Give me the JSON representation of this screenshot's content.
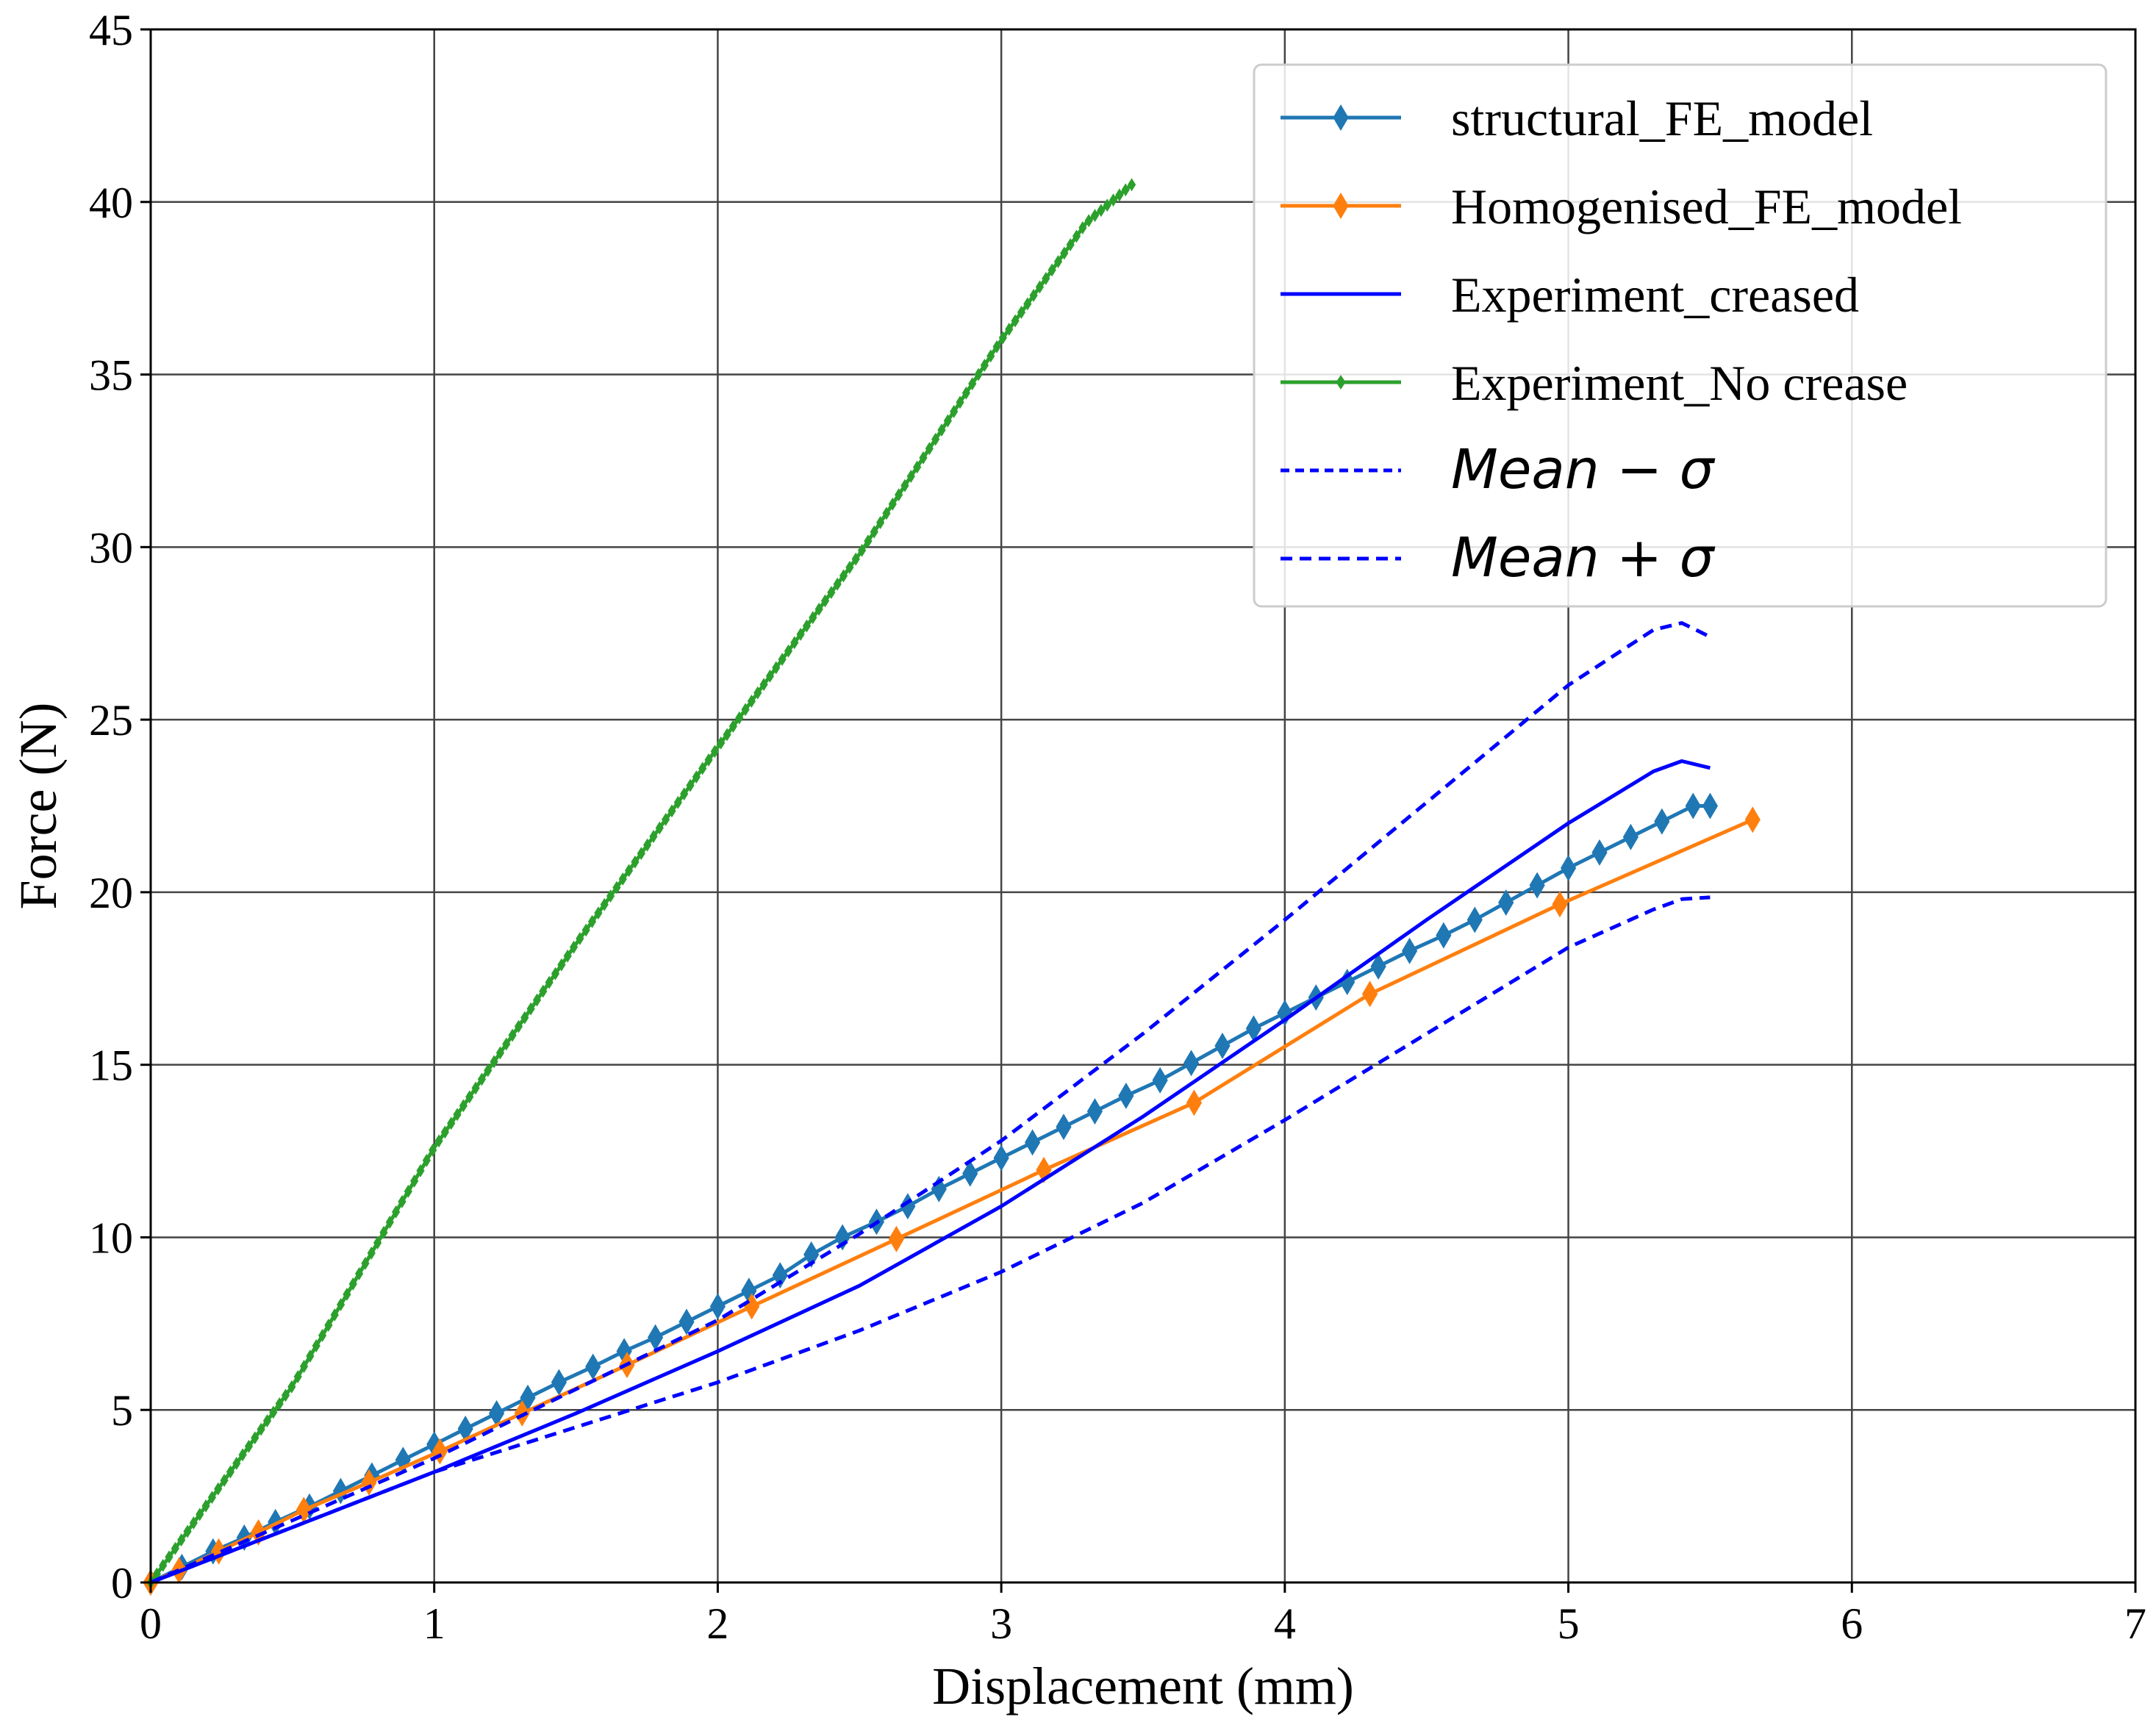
{
  "chart_data": {
    "type": "line",
    "title": "",
    "xlabel": "Displacement (mm)",
    "ylabel": "Force (N)",
    "xlim": [
      0,
      7
    ],
    "ylim": [
      0,
      45
    ],
    "xticks": [
      0,
      1,
      2,
      3,
      4,
      5,
      6,
      7
    ],
    "yticks": [
      0,
      5,
      10,
      15,
      20,
      25,
      30,
      35,
      40,
      45
    ],
    "grid": true,
    "legend_position": "top-right",
    "series": [
      {
        "name": "structural_FE_model",
        "color": "#1f77b4",
        "style": "solid",
        "marker": "diamond",
        "x": [
          0,
          0.11,
          0.22,
          0.33,
          0.44,
          0.56,
          0.67,
          0.78,
          0.89,
          1.0,
          1.11,
          1.22,
          1.33,
          1.44,
          1.56,
          1.67,
          1.78,
          1.89,
          2.0,
          2.11,
          2.22,
          2.33,
          2.44,
          2.56,
          2.67,
          2.78,
          2.89,
          3.0,
          3.11,
          3.22,
          3.33,
          3.44,
          3.56,
          3.67,
          3.78,
          3.89,
          4.0,
          4.11,
          4.22,
          4.33,
          4.44,
          4.56,
          4.67,
          4.78,
          4.89,
          5.0,
          5.11,
          5.22,
          5.33,
          5.44,
          5.5
        ],
        "y": [
          0,
          0.45,
          0.9,
          1.3,
          1.75,
          2.2,
          2.65,
          3.1,
          3.55,
          4.0,
          4.45,
          4.9,
          5.35,
          5.8,
          6.25,
          6.7,
          7.1,
          7.55,
          8.0,
          8.45,
          8.9,
          9.5,
          10.0,
          10.45,
          10.9,
          11.4,
          11.85,
          12.3,
          12.75,
          13.2,
          13.65,
          14.1,
          14.55,
          15.05,
          15.55,
          16.05,
          16.5,
          16.95,
          17.4,
          17.85,
          18.3,
          18.75,
          19.2,
          19.7,
          20.2,
          20.7,
          21.15,
          21.6,
          22.05,
          22.5,
          22.5
        ]
      },
      {
        "name": "Homogenised_FE_model",
        "color": "#ff7f0e",
        "style": "solid",
        "marker": "diamond",
        "x": [
          0,
          0.1,
          0.24,
          0.38,
          0.54,
          0.77,
          1.02,
          1.31,
          1.68,
          2.12,
          2.63,
          3.15,
          3.68,
          4.3,
          4.97,
          5.65
        ],
        "y": [
          0,
          0.35,
          0.9,
          1.45,
          2.1,
          2.9,
          3.8,
          4.9,
          6.3,
          8.0,
          9.95,
          11.95,
          13.9,
          17.05,
          19.65,
          22.1
        ]
      },
      {
        "name": "Experiment_creased",
        "color": "#0000ff",
        "style": "solid",
        "marker": "none",
        "x": [
          0,
          0.5,
          1.0,
          1.5,
          2.0,
          2.5,
          3.0,
          3.5,
          4.0,
          4.5,
          5.0,
          5.2,
          5.3,
          5.4,
          5.5
        ],
        "y": [
          0,
          1.6,
          3.2,
          4.9,
          6.7,
          8.6,
          10.9,
          13.5,
          16.3,
          19.2,
          22.0,
          23.0,
          23.5,
          23.8,
          23.6
        ]
      },
      {
        "name": "Experiment_No crease",
        "color": "#2ca02c",
        "style": "solid",
        "marker": "diamond",
        "x": [
          0,
          0.5,
          1.0,
          1.5,
          2.0,
          2.5,
          3.0,
          3.3,
          3.46
        ],
        "y": [
          0,
          5.7,
          12.6,
          18.5,
          24.2,
          29.8,
          36.0,
          39.4,
          40.5
        ]
      },
      {
        "name": "Mean − σ",
        "color": "#0000ff",
        "style": "dashed",
        "marker": "none",
        "x": [
          0,
          0.5,
          1.0,
          1.5,
          2.0,
          2.5,
          3.0,
          3.5,
          4.0,
          4.5,
          5.0,
          5.3,
          5.4,
          5.5
        ],
        "y": [
          0,
          1.6,
          3.2,
          4.5,
          5.8,
          7.3,
          9.0,
          11.0,
          13.4,
          15.9,
          18.4,
          19.5,
          19.8,
          19.85
        ]
      },
      {
        "name": "Mean + σ",
        "color": "#0000ff",
        "style": "dashed",
        "marker": "none",
        "x": [
          0,
          0.5,
          1.0,
          1.5,
          2.0,
          2.5,
          3.0,
          3.5,
          4.0,
          4.5,
          5.0,
          5.3,
          5.4,
          5.5
        ],
        "y": [
          0,
          1.8,
          3.6,
          5.6,
          7.6,
          10.1,
          12.8,
          15.9,
          19.2,
          22.6,
          26.0,
          27.6,
          27.8,
          27.4
        ]
      }
    ],
    "legend": [
      {
        "label": "structural_FE_model",
        "math": false
      },
      {
        "label": "Homogenised_FE_model",
        "math": false
      },
      {
        "label": "Experiment_creased",
        "math": false
      },
      {
        "label": "Experiment_No crease",
        "math": false
      },
      {
        "label": "Mean − σ",
        "math": true
      },
      {
        "label": "Mean + σ",
        "math": true
      }
    ]
  }
}
